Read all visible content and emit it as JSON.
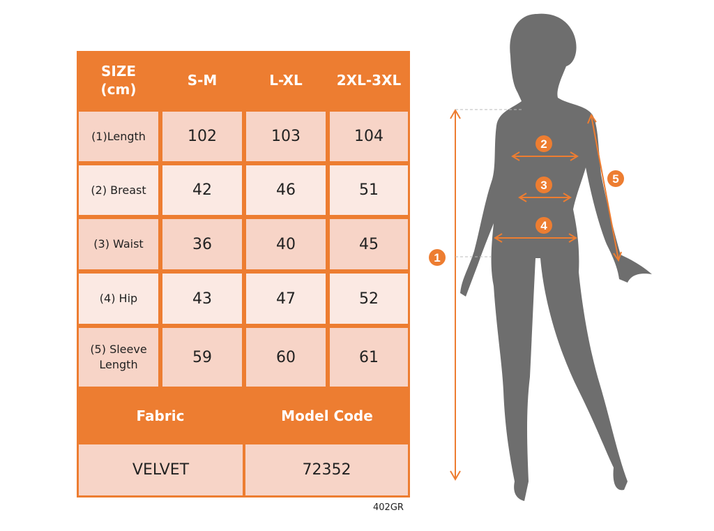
{
  "table": {
    "header": [
      "SIZE\n(cm)",
      "S-M",
      "L-XL",
      "2XL-3XL"
    ],
    "rows": [
      {
        "label": "(1)Length",
        "values": [
          "102",
          "103",
          "104"
        ]
      },
      {
        "label": "(2) Breast",
        "values": [
          "42",
          "46",
          "51"
        ]
      },
      {
        "label": "(3) Waist",
        "values": [
          "36",
          "40",
          "45"
        ]
      },
      {
        "label": "(4) Hip",
        "values": [
          "43",
          "47",
          "52"
        ]
      },
      {
        "label": "(5) Sleeve\nLength",
        "values": [
          "59",
          "60",
          "61"
        ]
      }
    ],
    "fabric_label": "Fabric",
    "model_code_label": "Model Code",
    "fabric_value": "VELVET",
    "model_code_value": "72352"
  },
  "product_code": "402GR",
  "figure": {
    "markers": [
      "1",
      "2",
      "3",
      "4",
      "5"
    ]
  },
  "colors": {
    "accent": "#ED7D31",
    "row_dark": "#F7D4C7",
    "row_light": "#FBE9E3",
    "silhouette": "#6E6E6E"
  }
}
